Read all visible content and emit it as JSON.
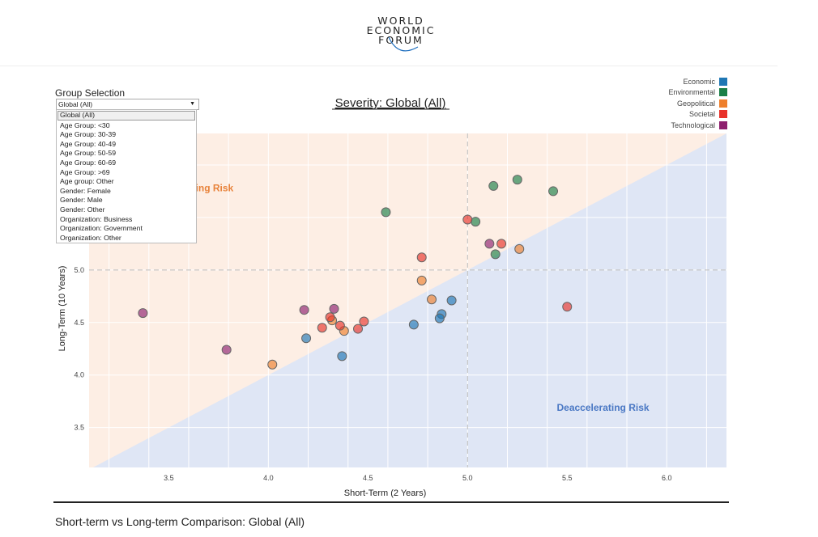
{
  "header": {
    "logo_lines": [
      "WORLD",
      "ECONOMIC",
      "FORUM"
    ]
  },
  "controls": {
    "group_label": "Group Selection",
    "selected": "Global (All)",
    "options": [
      "Global (All)",
      "Age Group: <30",
      "Age Group: 30-39",
      "Age Group: 40-49",
      "Age Group: 50-59",
      "Age Group: 60-69",
      "Age Group: >69",
      "Age group: Other",
      "Gender: Female",
      "Gender: Male",
      "Gender: Other",
      "Organization: Business",
      "Organization: Government",
      "Organization: Other"
    ]
  },
  "caption": "Short-term vs Long-term Comparison: Global (All)",
  "chart_data": {
    "type": "scatter",
    "title": "Severity: Global (All)",
    "xlabel": "Short-Term (2 Years)",
    "ylabel": "Long-Term (10 Years)",
    "xlim": [
      3.1,
      6.3
    ],
    "ylim": [
      3.12,
      6.3
    ],
    "xticks": [
      3.5,
      4.0,
      4.5,
      5.0,
      5.5,
      6.0
    ],
    "yticks": [
      3.5,
      4.0,
      4.5,
      5.0
    ],
    "reference_lines": {
      "x": 5.0,
      "y": 5.0
    },
    "regions": [
      {
        "label": "Accelerating Risk",
        "color": "#fdeee4",
        "label_color": "#e8823a",
        "label_pos": [
          3.62,
          5.75
        ]
      },
      {
        "label": "Deaccelerating Risk",
        "color": "#dfe6f5",
        "label_color": "#4a78c4",
        "label_pos": [
          5.68,
          3.66
        ]
      }
    ],
    "legend_position": "top-right",
    "series": [
      {
        "name": "Economic",
        "color": "#1f77b4",
        "points": [
          [
            4.92,
            4.71
          ],
          [
            4.87,
            4.58
          ],
          [
            4.86,
            4.54
          ],
          [
            4.73,
            4.48
          ],
          [
            4.19,
            4.35
          ],
          [
            4.37,
            4.18
          ]
        ]
      },
      {
        "name": "Environmental",
        "color": "#1a7f47",
        "points": [
          [
            4.59,
            5.55
          ],
          [
            5.13,
            5.8
          ],
          [
            5.25,
            5.86
          ],
          [
            5.43,
            5.75
          ],
          [
            5.04,
            5.46
          ],
          [
            5.14,
            5.15
          ]
        ]
      },
      {
        "name": "Geopolitical",
        "color": "#ee7f2d",
        "points": [
          [
            5.26,
            5.2
          ],
          [
            4.77,
            4.9
          ],
          [
            4.82,
            4.72
          ],
          [
            4.32,
            4.52
          ],
          [
            4.38,
            4.42
          ],
          [
            4.02,
            4.1
          ]
        ]
      },
      {
        "name": "Societal",
        "color": "#e8322a",
        "points": [
          [
            5.0,
            5.48
          ],
          [
            5.17,
            5.25
          ],
          [
            4.77,
            5.12
          ],
          [
            5.5,
            4.65
          ],
          [
            4.31,
            4.55
          ],
          [
            4.27,
            4.45
          ],
          [
            4.36,
            4.47
          ],
          [
            4.45,
            4.44
          ],
          [
            4.48,
            4.51
          ]
        ]
      },
      {
        "name": "Technological",
        "color": "#8e1f6e",
        "points": [
          [
            5.11,
            5.25
          ],
          [
            3.37,
            4.59
          ],
          [
            3.79,
            4.24
          ],
          [
            4.18,
            4.62
          ],
          [
            4.33,
            4.63
          ]
        ]
      }
    ]
  }
}
